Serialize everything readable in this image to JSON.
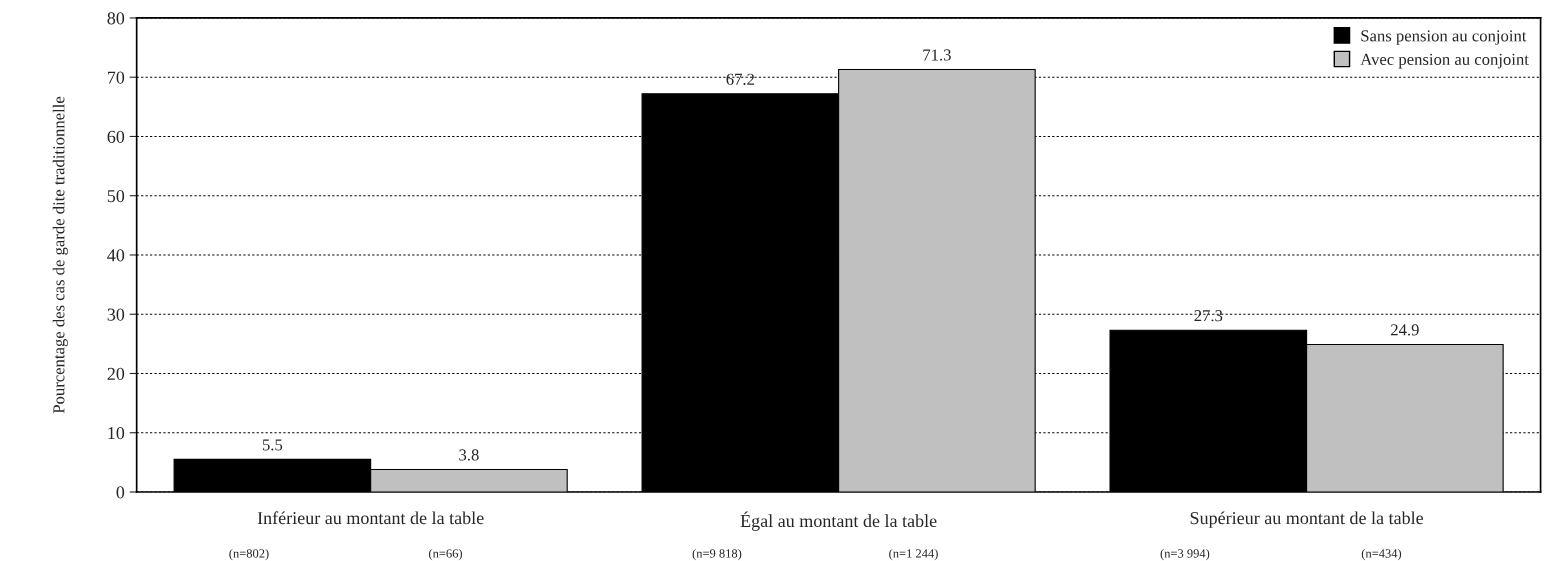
{
  "chart_data": {
    "type": "bar",
    "ylabel": "Pourcentage des cas de garde dite traditionnelle",
    "categories": [
      "Inférieur au montant de la table",
      "Égal au montant de la table",
      "Supérieur au montant de la table"
    ],
    "series": [
      {
        "name": "Sans pension au conjoint",
        "color": "#000000",
        "values": [
          5.5,
          67.2,
          27.3
        ]
      },
      {
        "name": "Avec pension au conjoint",
        "color": "#c0c0c0",
        "values": [
          3.8,
          71.3,
          24.9
        ]
      }
    ],
    "ylim": [
      0,
      80
    ],
    "yticks": [
      0,
      10,
      20,
      30,
      40,
      50,
      60,
      70,
      80
    ],
    "grid": "y",
    "legend": "top right",
    "data_labels": true,
    "annotations": [
      "(n=802)",
      "(n=66)",
      "(n=9 818)",
      "(n=1 244)",
      "(n=3 994)",
      "(n=434)"
    ]
  }
}
